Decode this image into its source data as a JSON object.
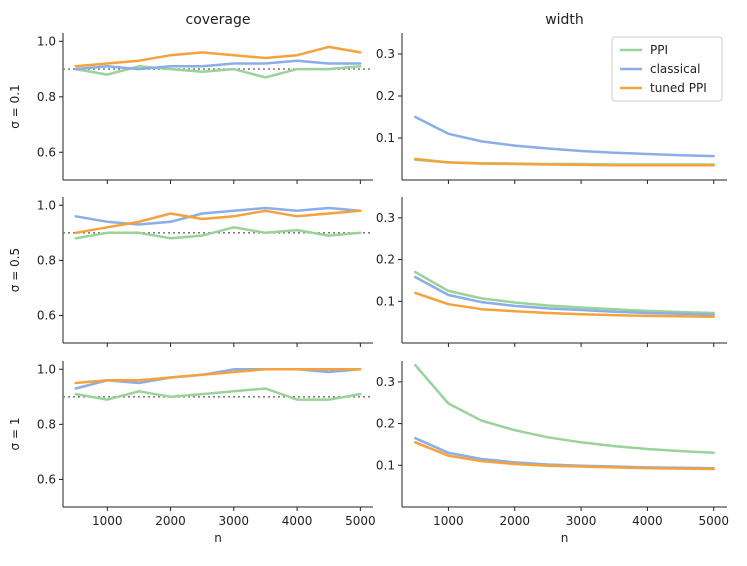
{
  "chart_data": {
    "type": "line",
    "column_titles": [
      "coverage",
      "width"
    ],
    "xlabel": "n",
    "x": [
      500,
      1000,
      1500,
      2000,
      2500,
      3000,
      3500,
      4000,
      4500,
      5000
    ],
    "xlim": [
      300,
      5200
    ],
    "xticks": [
      1000,
      2000,
      3000,
      4000,
      5000
    ],
    "xtick_labels": [
      "1000",
      "2000",
      "3000",
      "4000",
      "5000"
    ],
    "colors": {
      "PPI": "#9ad39a",
      "classical": "#8aaee8",
      "tuned PPI": "#f5a23c",
      "reference_line": "#808080"
    },
    "legend": {
      "location": "top-right of upper-right panel",
      "entries": [
        "PPI",
        "classical",
        "tuned PPI"
      ]
    },
    "coverage_axis": {
      "ylim": [
        0.5,
        1.03
      ],
      "yticks": [
        0.6,
        0.8,
        1.0
      ],
      "ytick_labels": [
        "0.6",
        "0.8",
        "1.0"
      ],
      "target_line": 0.9
    },
    "width_axis": {
      "ylim": [
        0.0,
        0.35
      ],
      "yticks": [
        0.1,
        0.2,
        0.3
      ],
      "ytick_labels": [
        "0.1",
        "0.2",
        "0.3"
      ]
    },
    "rows": [
      {
        "sigma_label": "σ = 0.1",
        "coverage": [
          {
            "name": "PPI",
            "values": [
              0.9,
              0.88,
              0.91,
              0.9,
              0.89,
              0.9,
              0.87,
              0.9,
              0.9,
              0.91
            ]
          },
          {
            "name": "classical",
            "values": [
              0.9,
              0.91,
              0.9,
              0.91,
              0.91,
              0.92,
              0.92,
              0.93,
              0.92,
              0.92
            ]
          },
          {
            "name": "tuned PPI",
            "values": [
              0.91,
              0.92,
              0.93,
              0.95,
              0.96,
              0.95,
              0.94,
              0.95,
              0.98,
              0.96
            ]
          }
        ],
        "width": [
          {
            "name": "PPI",
            "values": [
              0.048,
              0.042,
              0.04,
              0.039,
              0.038,
              0.038,
              0.037,
              0.037,
              0.037,
              0.037
            ]
          },
          {
            "name": "classical",
            "values": [
              0.15,
              0.11,
              0.092,
              0.082,
              0.075,
              0.069,
              0.065,
              0.062,
              0.059,
              0.057
            ]
          },
          {
            "name": "tuned PPI",
            "values": [
              0.05,
              0.042,
              0.039,
              0.038,
              0.037,
              0.036,
              0.035,
              0.035,
              0.035,
              0.035
            ]
          }
        ]
      },
      {
        "sigma_label": "σ = 0.5",
        "coverage": [
          {
            "name": "PPI",
            "values": [
              0.88,
              0.9,
              0.9,
              0.88,
              0.89,
              0.92,
              0.9,
              0.91,
              0.89,
              0.9
            ]
          },
          {
            "name": "classical",
            "values": [
              0.96,
              0.94,
              0.93,
              0.94,
              0.97,
              0.98,
              0.99,
              0.98,
              0.99,
              0.98
            ]
          },
          {
            "name": "tuned PPI",
            "values": [
              0.9,
              0.92,
              0.94,
              0.97,
              0.95,
              0.96,
              0.98,
              0.96,
              0.97,
              0.98
            ]
          }
        ],
        "width": [
          {
            "name": "PPI",
            "values": [
              0.17,
              0.125,
              0.107,
              0.097,
              0.09,
              0.085,
              0.081,
              0.077,
              0.074,
              0.072
            ]
          },
          {
            "name": "classical",
            "values": [
              0.158,
              0.115,
              0.098,
              0.089,
              0.083,
              0.079,
              0.075,
              0.072,
              0.07,
              0.068
            ]
          },
          {
            "name": "tuned PPI",
            "values": [
              0.12,
              0.093,
              0.081,
              0.076,
              0.072,
              0.069,
              0.067,
              0.065,
              0.064,
              0.063
            ]
          }
        ]
      },
      {
        "sigma_label": "σ = 1",
        "coverage": [
          {
            "name": "PPI",
            "values": [
              0.91,
              0.89,
              0.92,
              0.9,
              0.91,
              0.92,
              0.93,
              0.89,
              0.89,
              0.91
            ]
          },
          {
            "name": "classical",
            "values": [
              0.93,
              0.96,
              0.95,
              0.97,
              0.98,
              1.0,
              1.0,
              1.0,
              0.99,
              1.0
            ]
          },
          {
            "name": "tuned PPI",
            "values": [
              0.95,
              0.96,
              0.96,
              0.97,
              0.98,
              0.99,
              1.0,
              1.0,
              1.0,
              1.0
            ]
          }
        ],
        "width": [
          {
            "name": "PPI",
            "values": [
              0.34,
              0.248,
              0.207,
              0.184,
              0.167,
              0.155,
              0.146,
              0.139,
              0.134,
              0.13
            ]
          },
          {
            "name": "classical",
            "values": [
              0.165,
              0.13,
              0.115,
              0.107,
              0.102,
              0.099,
              0.097,
              0.095,
              0.094,
              0.093
            ]
          },
          {
            "name": "tuned PPI",
            "values": [
              0.155,
              0.123,
              0.11,
              0.103,
              0.099,
              0.097,
              0.095,
              0.093,
              0.092,
              0.091
            ]
          }
        ]
      }
    ]
  }
}
